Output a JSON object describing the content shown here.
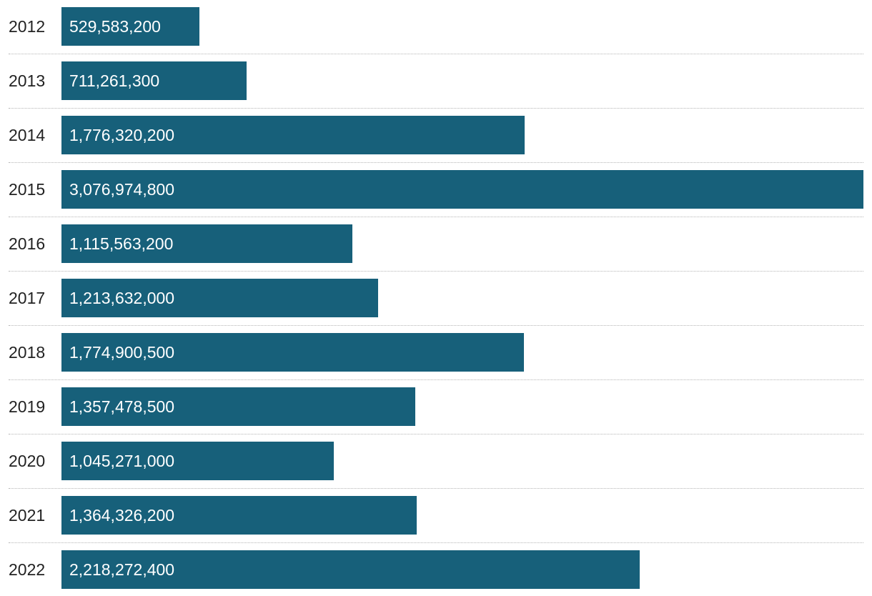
{
  "chart_data": {
    "type": "bar",
    "orientation": "horizontal",
    "categories": [
      "2012",
      "2013",
      "2014",
      "2015",
      "2016",
      "2017",
      "2018",
      "2019",
      "2020",
      "2021",
      "2022"
    ],
    "values": [
      529583200,
      711261300,
      1776320200,
      3076974800,
      1115563200,
      1213632000,
      1774900500,
      1357478500,
      1045271000,
      1364326200,
      2218272400
    ],
    "value_labels": [
      "529,583,200",
      "711,261,300",
      "1,776,320,200",
      "3,076,974,800",
      "1,115,563,200",
      "1,213,632,000",
      "1,774,900,500",
      "1,357,478,500",
      "1,045,271,000",
      "1,364,326,200",
      "2,218,272,400"
    ],
    "xlim": [
      0,
      3076974800
    ],
    "grid": false,
    "bar_color": "#17607a",
    "label_color": "#ffffff",
    "divider_color": "#b5b5b5"
  }
}
